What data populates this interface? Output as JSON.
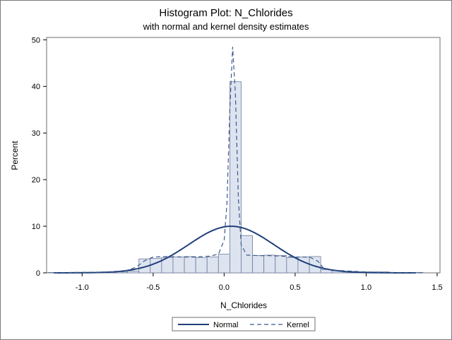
{
  "chart_data": {
    "type": "bar",
    "title": "Histogram Plot: N_Chlorides",
    "subtitle": "with normal and kernel density estimates",
    "xlabel": "N_Chlorides",
    "ylabel": "Percent",
    "xlim": [
      -1.25,
      1.52
    ],
    "ylim": [
      0,
      50.5
    ],
    "xticks": [
      -1.0,
      -0.5,
      0.0,
      0.5,
      1.0,
      1.5
    ],
    "xtick_labels": [
      "-1.0",
      "-0.5",
      "0.0",
      "0.5",
      "1.0",
      "1.5"
    ],
    "yticks": [
      0,
      10,
      20,
      30,
      40,
      50
    ],
    "ytick_labels": [
      "0",
      "10",
      "20",
      "30",
      "40",
      "50"
    ],
    "bin_width": 0.08,
    "bin_centers": [
      -1.2,
      -1.12,
      -1.04,
      -0.96,
      -0.88,
      -0.8,
      -0.72,
      -0.64,
      -0.56,
      -0.48,
      -0.4,
      -0.32,
      -0.24,
      -0.16,
      -0.08,
      0.0,
      0.08,
      0.16,
      0.24,
      0.32,
      0.4,
      0.48,
      0.56,
      0.64,
      0.72,
      0.8,
      0.88,
      0.96,
      1.04,
      1.12,
      1.2,
      1.28,
      1.36
    ],
    "values": [
      0.1,
      0.1,
      0.1,
      0.1,
      0.1,
      0.1,
      0.2,
      0.4,
      3.0,
      3.1,
      3.3,
      3.4,
      3.5,
      3.3,
      3.4,
      4.0,
      41.0,
      8.0,
      3.7,
      3.8,
      3.7,
      3.3,
      3.4,
      3.5,
      0.7,
      0.5,
      0.3,
      0.2,
      0.2,
      0.2,
      0.1,
      0.1,
      0.1
    ],
    "bar_fill": "#dde4f0",
    "bar_stroke": "#6b7a99",
    "series": [
      {
        "name": "Normal",
        "color": "#1f3f7a",
        "style": "solid",
        "mean": 0.05,
        "peak": 10.0,
        "sd": 0.3
      },
      {
        "name": "Kernel",
        "color": "#3b5a8c",
        "style": "dashed",
        "x": [
          -1.2,
          -1.0,
          -0.8,
          -0.7,
          -0.62,
          -0.56,
          -0.5,
          -0.4,
          -0.3,
          -0.2,
          -0.1,
          -0.04,
          0.0,
          0.02,
          0.04,
          0.06,
          0.08,
          0.1,
          0.12,
          0.16,
          0.24,
          0.32,
          0.4,
          0.5,
          0.6,
          0.66,
          0.7,
          0.8,
          1.0,
          1.2,
          1.4
        ],
        "y": [
          0.0,
          0.1,
          0.2,
          0.4,
          1.2,
          2.6,
          3.4,
          3.5,
          3.4,
          3.4,
          3.6,
          4.0,
          7.0,
          15.0,
          35.0,
          48.5,
          38.0,
          16.0,
          6.0,
          3.8,
          3.7,
          3.7,
          3.6,
          3.4,
          3.4,
          2.5,
          1.0,
          0.5,
          0.2,
          0.05,
          0.0
        ]
      }
    ],
    "legend": {
      "position": "bottom",
      "entries": [
        "Normal",
        "Kernel"
      ]
    },
    "grid": false
  }
}
